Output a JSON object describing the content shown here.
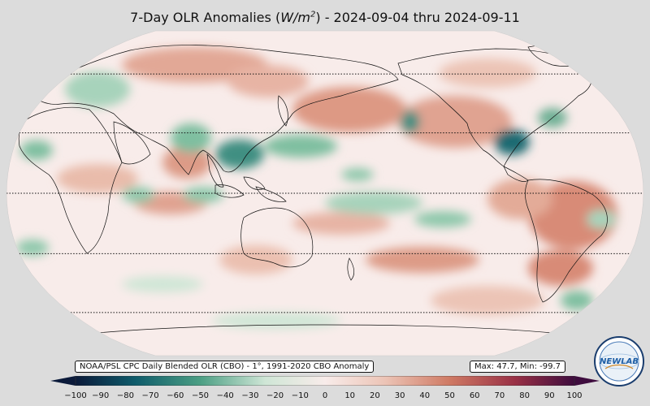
{
  "map": {
    "title_prefix": "7-Day OLR Anomalies (",
    "title_unit_main": "W/m",
    "title_unit_exp": "2",
    "title_suffix": ") - 2024-09-04 thru 2024-09-11",
    "projection": "Robinson",
    "central_longitude": 180,
    "parallels_drawn": [
      60,
      30,
      0,
      -30,
      -60
    ]
  },
  "info": {
    "source_label": "NOAA/PSL CPC Daily Blended OLR (CBO) - 1°, 1991-2020 CBO Anomaly",
    "range_label": "Max: 47.7,  Min: -99.7",
    "max": 47.7,
    "min": -99.7
  },
  "colorbar": {
    "min": -100,
    "max": 100,
    "extend": "both",
    "ticks": [
      "−100",
      "−90",
      "−80",
      "−70",
      "−60",
      "−50",
      "−40",
      "−30",
      "−20",
      "−10",
      "0",
      "10",
      "20",
      "30",
      "40",
      "50",
      "60",
      "70",
      "80",
      "90",
      "100"
    ],
    "colors": {
      "neg_extreme": "#0b1a3a",
      "neg_strong": "#0f5c6b",
      "neg_mid": "#4c9f84",
      "neg_light": "#cfe6d6",
      "neutral": "#f8ecea",
      "pos_light": "#ecc4b6",
      "pos_mid": "#cf7a64",
      "pos_strong": "#9a3146",
      "pos_extreme": "#3e0c3e"
    }
  },
  "logo": {
    "text": "NEWLAB"
  }
}
